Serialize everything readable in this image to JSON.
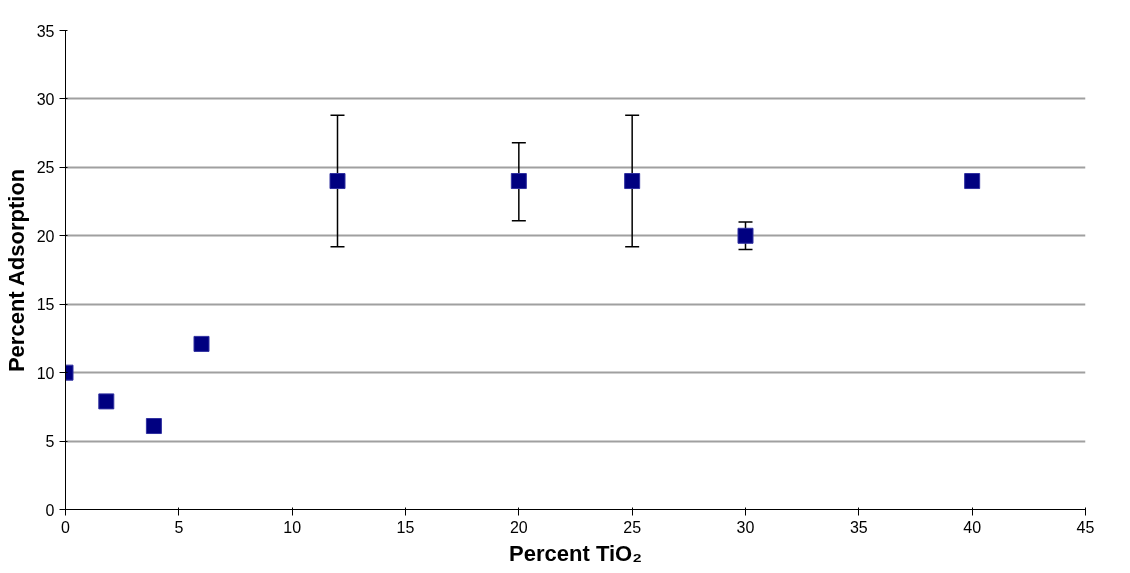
{
  "chart_data": {
    "type": "scatter",
    "xlabel": "Percent TiO₂",
    "ylabel": "Percent Adsorption",
    "x": [
      0,
      1.8,
      3.9,
      6,
      12,
      20,
      25,
      30,
      40
    ],
    "series": [
      {
        "color": "#000080",
        "values": [
          10,
          7.9,
          6.1,
          12.1,
          24,
          24,
          24,
          20,
          24
        ],
        "errors": [
          null,
          null,
          null,
          null,
          [
            19.2,
            28.8
          ],
          [
            21.1,
            26.8
          ],
          [
            19.2,
            28.8
          ],
          [
            19,
            21
          ],
          null
        ]
      }
    ],
    "xlim": [
      0,
      45
    ],
    "ylim": [
      0,
      35
    ],
    "xticks": [
      0,
      5,
      10,
      15,
      20,
      25,
      30,
      35,
      40,
      45
    ],
    "yticks": [
      0,
      5,
      10,
      15,
      20,
      25,
      30,
      35
    ],
    "grid": "y",
    "marker": "square"
  }
}
